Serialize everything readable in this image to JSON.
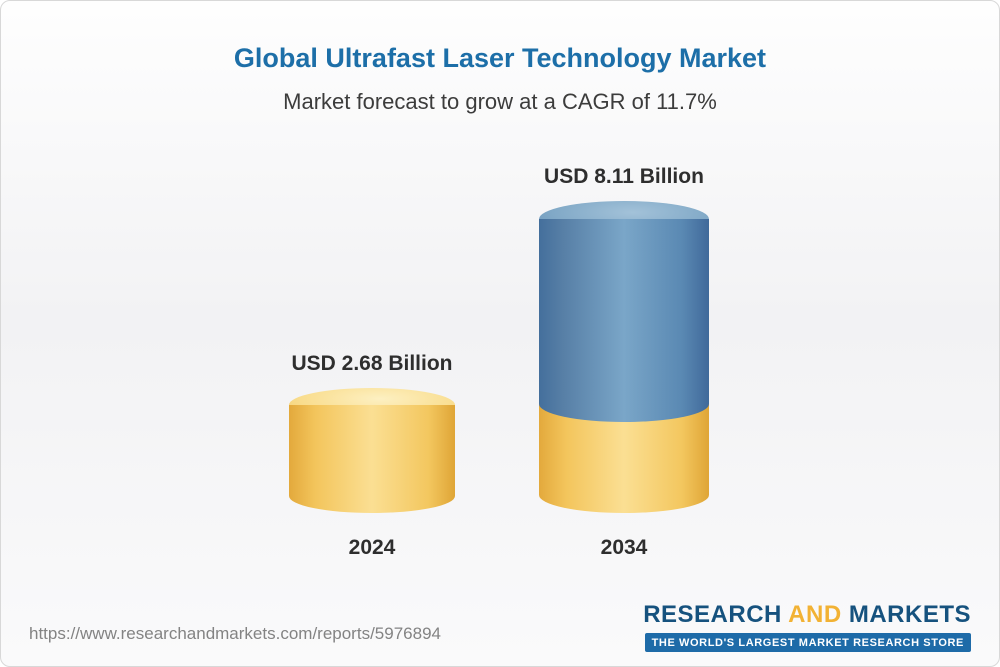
{
  "header": {
    "title": "Global Ultrafast Laser Technology Market",
    "subtitle": "Market forecast to grow at a CAGR of 11.7%"
  },
  "chart_data": {
    "type": "bar",
    "variant": "3d-cylinder",
    "categories": [
      "2024",
      "2034"
    ],
    "values": [
      2.68,
      8.11
    ],
    "value_labels": [
      "USD 2.68 Billion",
      "USD 8.11 Billion"
    ],
    "unit": "USD Billion",
    "cagr_percent": 11.7,
    "title": "Global Ultrafast Laser Technology Market",
    "subtitle": "Market forecast to grow at a CAGR of 11.7%",
    "xlabel": "",
    "ylabel": "",
    "axes_visible": false,
    "grid": false,
    "legend": "none",
    "bar_styles": [
      {
        "color": "#f6cd68"
      },
      {
        "color": "#5f8fb8",
        "base_overlay_color": "#f6cd68",
        "base_overlay_value": 2.68
      }
    ]
  },
  "footer": {
    "url": "https://www.researchandmarkets.com/reports/5976894",
    "logo": {
      "part1": "RESEARCH",
      "part2": "AND",
      "part3": "MARKETS",
      "tagline": "THE WORLD'S LARGEST MARKET RESEARCH STORE"
    }
  },
  "colors": {
    "title_blue": "#1d6fa8",
    "subtitle_gray": "#3c3c3c",
    "bar_yellow": "#f6cd68",
    "bar_blue": "#5f8fb8",
    "logo_blue": "#16527e",
    "logo_gold": "#f2b234",
    "tagline_bg": "#1e6ba8"
  }
}
